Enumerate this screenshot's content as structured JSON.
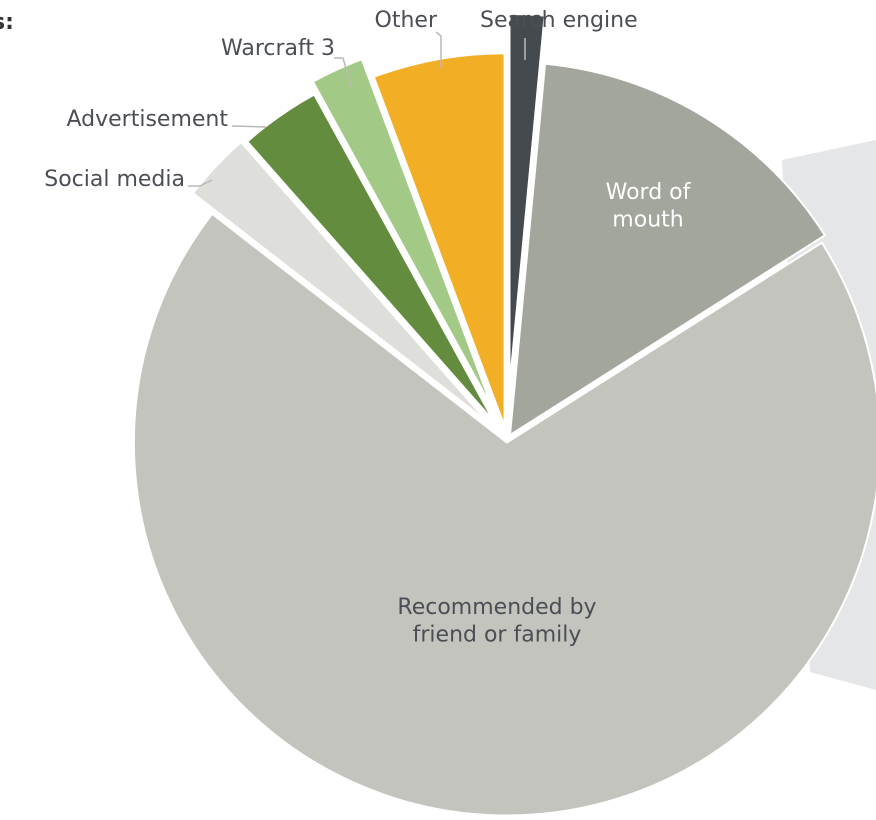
{
  "heading_fragment": "s:",
  "chart_data": {
    "type": "pie",
    "unit": "percent",
    "start_angle_deg": 0,
    "direction": "clockwise",
    "slices": [
      {
        "name": "Search engine",
        "value": 1.5,
        "color": "#454a4f",
        "label": "Search engine",
        "label_position": "outside"
      },
      {
        "name": "Word of mouth",
        "value": 14.5,
        "color": "#a3a69d",
        "label": "Word of\nmouth",
        "label_position": "inside",
        "label_color": "#ffffff"
      },
      {
        "name": "Recommended by friend or family",
        "value": 69.5,
        "color": "#c3c4bd",
        "label": "Recommended by\nfriend or family",
        "label_position": "inside",
        "label_color": "#4b4f55"
      },
      {
        "name": "Social media",
        "value": 3.0,
        "color": "#dedfdb",
        "label": "Social media",
        "label_position": "outside"
      },
      {
        "name": "Advertisement",
        "value": 3.5,
        "color": "#638c3e",
        "label": "Advertisement",
        "label_position": "outside"
      },
      {
        "name": "Warcraft 3",
        "value": 2.3,
        "color": "#a3c987",
        "label": "Warcraft 3",
        "label_position": "outside"
      },
      {
        "name": "Other",
        "value": 5.7,
        "color": "#f2ae25",
        "label": "Other",
        "label_position": "outside"
      }
    ]
  }
}
